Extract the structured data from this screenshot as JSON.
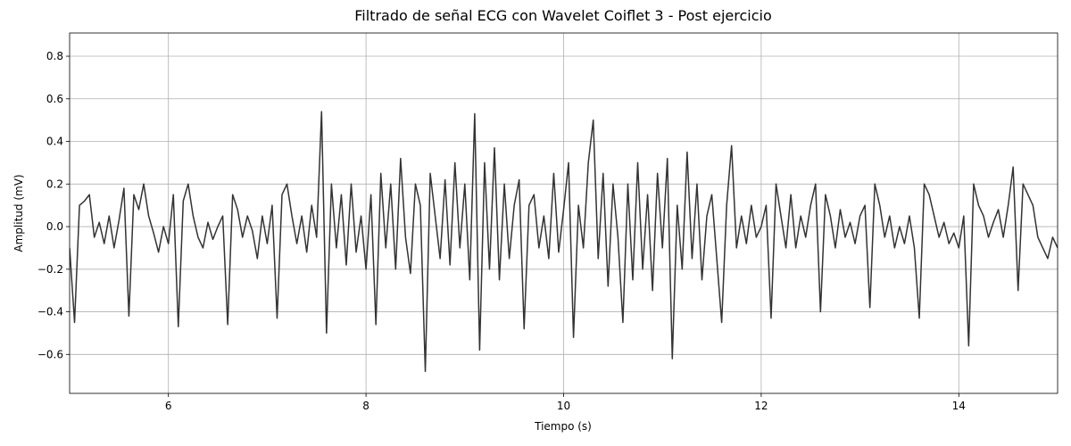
{
  "chart_data": {
    "type": "line",
    "title": "Filtrado de señal ECG con Wavelet Coiflet 3 - Post ejercicio",
    "xlabel": "Tiempo (s)",
    "ylabel": "Amplitud (mV)",
    "color": "#333333",
    "grid": true,
    "xlim": [
      5,
      15
    ],
    "xticks": [
      6,
      8,
      10,
      12,
      14
    ],
    "ylim": [
      -0.783,
      0.909
    ],
    "yticks": [
      {
        "value": -0.6,
        "label": "−0.6"
      },
      {
        "value": -0.4,
        "label": "−0.4"
      },
      {
        "value": -0.2,
        "label": "−0.2"
      },
      {
        "value": 0,
        "label": "0.0"
      },
      0.2,
      0.4,
      0.6,
      0.8
    ],
    "x": [
      5.0,
      5.05,
      5.1,
      5.15,
      5.2,
      5.25,
      5.3,
      5.35,
      5.4,
      5.45,
      5.5,
      5.55,
      5.6,
      5.65,
      5.7,
      5.75,
      5.8,
      5.85,
      5.9,
      5.95,
      6.0,
      6.05,
      6.1,
      6.15,
      6.2,
      6.25,
      6.3,
      6.35,
      6.4,
      6.45,
      6.5,
      6.55,
      6.6,
      6.65,
      6.7,
      6.75,
      6.8,
      6.85,
      6.9,
      6.95,
      7.0,
      7.05,
      7.1,
      7.15,
      7.2,
      7.25,
      7.3,
      7.35,
      7.4,
      7.45,
      7.5,
      7.55,
      7.6,
      7.65,
      7.7,
      7.75,
      7.8,
      7.85,
      7.9,
      7.95,
      8.0,
      8.05,
      8.1,
      8.15,
      8.2,
      8.25,
      8.3,
      8.35,
      8.4,
      8.45,
      8.5,
      8.55,
      8.6,
      8.65,
      8.7,
      8.75,
      8.8,
      8.85,
      8.9,
      8.95,
      9.0,
      9.05,
      9.1,
      9.15,
      9.2,
      9.25,
      9.3,
      9.35,
      9.4,
      9.45,
      9.5,
      9.55,
      9.6,
      9.65,
      9.7,
      9.75,
      9.8,
      9.85,
      9.9,
      9.95,
      10.0,
      10.05,
      10.1,
      10.15,
      10.2,
      10.25,
      10.3,
      10.35,
      10.4,
      10.45,
      10.5,
      10.55,
      10.6,
      10.65,
      10.7,
      10.75,
      10.8,
      10.85,
      10.9,
      10.95,
      11.0,
      11.05,
      11.1,
      11.15,
      11.2,
      11.25,
      11.3,
      11.35,
      11.4,
      11.45,
      11.5,
      11.55,
      11.6,
      11.65,
      11.7,
      11.75,
      11.8,
      11.85,
      11.9,
      11.95,
      12.0,
      12.05,
      12.1,
      12.15,
      12.2,
      12.25,
      12.3,
      12.35,
      12.4,
      12.45,
      12.5,
      12.55,
      12.6,
      12.65,
      12.7,
      12.75,
      12.8,
      12.85,
      12.9,
      12.95,
      13.0,
      13.05,
      13.1,
      13.15,
      13.2,
      13.25,
      13.3,
      13.35,
      13.4,
      13.45,
      13.5,
      13.55,
      13.6,
      13.65,
      13.7,
      13.75,
      13.8,
      13.85,
      13.9,
      13.95,
      14.0,
      14.05,
      14.1,
      14.15,
      14.2,
      14.25,
      14.3,
      14.35,
      14.4,
      14.45,
      14.5,
      14.55,
      14.6,
      14.65,
      14.7,
      14.75,
      14.8,
      14.85,
      14.9,
      14.95,
      15.0
    ],
    "values": [
      -0.1,
      -0.45,
      0.1,
      0.12,
      0.15,
      -0.05,
      0.02,
      -0.08,
      0.05,
      -0.1,
      0.03,
      0.18,
      -0.42,
      0.15,
      0.08,
      0.2,
      0.05,
      -0.03,
      -0.12,
      0.0,
      -0.08,
      0.15,
      -0.47,
      0.12,
      0.2,
      0.05,
      -0.05,
      -0.1,
      0.02,
      -0.06,
      0.0,
      0.05,
      -0.46,
      0.15,
      0.08,
      -0.05,
      0.05,
      -0.02,
      -0.15,
      0.05,
      -0.08,
      0.1,
      -0.43,
      0.15,
      0.2,
      0.05,
      -0.08,
      0.05,
      -0.12,
      0.1,
      -0.05,
      0.54,
      -0.5,
      0.2,
      -0.1,
      0.15,
      -0.18,
      0.2,
      -0.12,
      0.05,
      -0.2,
      0.15,
      -0.46,
      0.25,
      -0.1,
      0.2,
      -0.2,
      0.32,
      -0.05,
      -0.22,
      0.2,
      0.1,
      -0.68,
      0.25,
      0.05,
      -0.15,
      0.22,
      -0.18,
      0.3,
      -0.1,
      0.2,
      -0.25,
      0.53,
      -0.58,
      0.3,
      -0.2,
      0.37,
      -0.25,
      0.2,
      -0.15,
      0.1,
      0.22,
      -0.48,
      0.1,
      0.15,
      -0.1,
      0.05,
      -0.15,
      0.25,
      -0.12,
      0.08,
      0.3,
      -0.52,
      0.1,
      -0.1,
      0.3,
      0.5,
      -0.15,
      0.25,
      -0.28,
      0.2,
      -0.05,
      -0.45,
      0.2,
      -0.25,
      0.3,
      -0.2,
      0.15,
      -0.3,
      0.25,
      -0.1,
      0.32,
      -0.62,
      0.1,
      -0.2,
      0.35,
      -0.15,
      0.2,
      -0.25,
      0.05,
      0.15,
      -0.15,
      -0.45,
      0.1,
      0.38,
      -0.1,
      0.05,
      -0.08,
      0.1,
      -0.05,
      0.0,
      0.1,
      -0.43,
      0.2,
      0.05,
      -0.1,
      0.15,
      -0.1,
      0.05,
      -0.05,
      0.1,
      0.2,
      -0.4,
      0.15,
      0.05,
      -0.1,
      0.08,
      -0.05,
      0.02,
      -0.08,
      0.05,
      0.1,
      -0.38,
      0.2,
      0.1,
      -0.05,
      0.05,
      -0.1,
      0.0,
      -0.08,
      0.05,
      -0.1,
      -0.43,
      0.2,
      0.15,
      0.05,
      -0.05,
      0.02,
      -0.08,
      -0.03,
      -0.1,
      0.05,
      -0.56,
      0.2,
      0.1,
      0.05,
      -0.05,
      0.02,
      0.08,
      -0.05,
      0.1,
      0.28,
      -0.3,
      0.2,
      0.15,
      0.1,
      -0.05,
      -0.1,
      -0.15,
      -0.05,
      -0.1
    ]
  }
}
